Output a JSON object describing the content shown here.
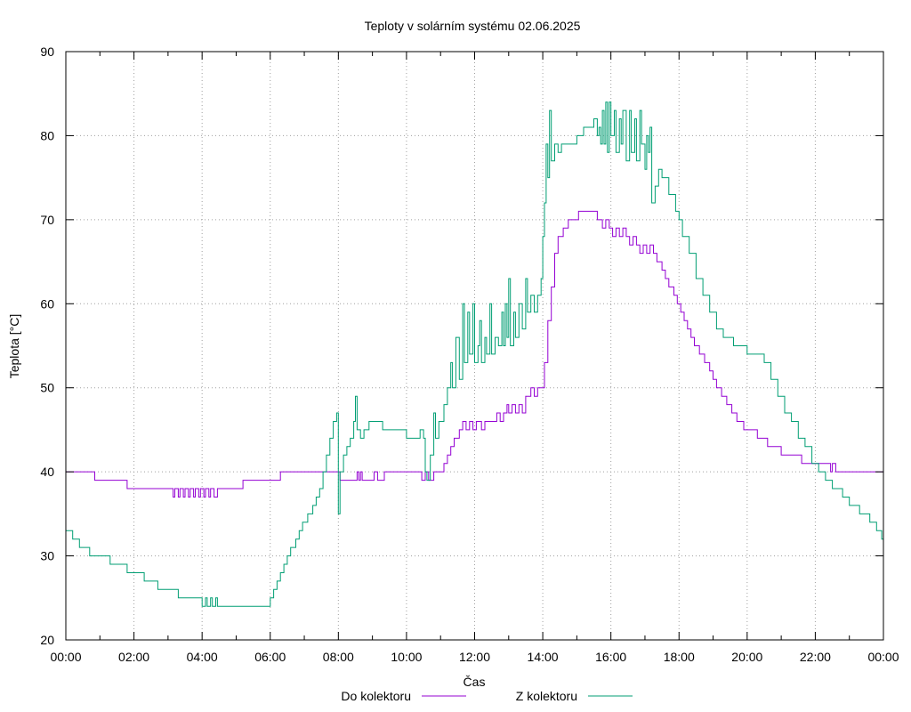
{
  "chart_data": {
    "type": "line",
    "title": "Teploty v solárním systému 02.06.2025",
    "xlabel": "Čas",
    "ylabel": "Teplota [°C]",
    "xlim": [
      0,
      24
    ],
    "ylim": [
      20,
      90
    ],
    "x_ticks": [
      {
        "value": 0,
        "label": "00:00"
      },
      {
        "value": 2,
        "label": "02:00"
      },
      {
        "value": 4,
        "label": "04:00"
      },
      {
        "value": 6,
        "label": "06:00"
      },
      {
        "value": 8,
        "label": "08:00"
      },
      {
        "value": 10,
        "label": "10:00"
      },
      {
        "value": 12,
        "label": "12:00"
      },
      {
        "value": 14,
        "label": "14:00"
      },
      {
        "value": 16,
        "label": "16:00"
      },
      {
        "value": 18,
        "label": "18:00"
      },
      {
        "value": 20,
        "label": "20:00"
      },
      {
        "value": 22,
        "label": "22:00"
      },
      {
        "value": 24,
        "label": "00:00"
      }
    ],
    "y_ticks": [
      {
        "value": 20,
        "label": "20"
      },
      {
        "value": 30,
        "label": "30"
      },
      {
        "value": 40,
        "label": "40"
      },
      {
        "value": 50,
        "label": "50"
      },
      {
        "value": 60,
        "label": "60"
      },
      {
        "value": 70,
        "label": "70"
      },
      {
        "value": 80,
        "label": "80"
      },
      {
        "value": 90,
        "label": "90"
      }
    ],
    "grid": true,
    "legend_position": "bottom-center",
    "series": [
      {
        "name": "Do kolektoru",
        "color": "#9400d3",
        "step": true,
        "points": [
          [
            0,
            40
          ],
          [
            0.85,
            39
          ],
          [
            1.8,
            38
          ],
          [
            3.0,
            38
          ],
          [
            3.15,
            37
          ],
          [
            3.2,
            38
          ],
          [
            3.3,
            37
          ],
          [
            3.35,
            38
          ],
          [
            3.45,
            37
          ],
          [
            3.5,
            38
          ],
          [
            3.6,
            37
          ],
          [
            3.65,
            38
          ],
          [
            3.75,
            37
          ],
          [
            3.8,
            38
          ],
          [
            3.9,
            37
          ],
          [
            3.95,
            38
          ],
          [
            4.05,
            37
          ],
          [
            4.1,
            38
          ],
          [
            4.2,
            37
          ],
          [
            4.25,
            38
          ],
          [
            4.35,
            37
          ],
          [
            4.45,
            38
          ],
          [
            5.2,
            39
          ],
          [
            6.3,
            40
          ],
          [
            8.0,
            40
          ],
          [
            8.05,
            39
          ],
          [
            8.5,
            39
          ],
          [
            8.55,
            40
          ],
          [
            8.6,
            39
          ],
          [
            8.65,
            40
          ],
          [
            8.7,
            39
          ],
          [
            9.0,
            39
          ],
          [
            9.05,
            40
          ],
          [
            9.15,
            39
          ],
          [
            9.3,
            39
          ],
          [
            9.35,
            40
          ],
          [
            10.4,
            40
          ],
          [
            10.45,
            39
          ],
          [
            10.55,
            40
          ],
          [
            10.65,
            39
          ],
          [
            10.8,
            40
          ],
          [
            11.0,
            40
          ],
          [
            11.1,
            41
          ],
          [
            11.2,
            42
          ],
          [
            11.3,
            43
          ],
          [
            11.4,
            44
          ],
          [
            11.55,
            45
          ],
          [
            11.65,
            46
          ],
          [
            11.75,
            45
          ],
          [
            11.85,
            46
          ],
          [
            11.95,
            45
          ],
          [
            12.05,
            46
          ],
          [
            12.2,
            45
          ],
          [
            12.3,
            46
          ],
          [
            12.5,
            46
          ],
          [
            12.65,
            47
          ],
          [
            12.75,
            46
          ],
          [
            12.85,
            47
          ],
          [
            12.95,
            48
          ],
          [
            13.0,
            47
          ],
          [
            13.1,
            48
          ],
          [
            13.2,
            47
          ],
          [
            13.3,
            48
          ],
          [
            13.4,
            47
          ],
          [
            13.5,
            49
          ],
          [
            13.65,
            50
          ],
          [
            13.75,
            49
          ],
          [
            13.85,
            50
          ],
          [
            14.0,
            50
          ],
          [
            14.05,
            53
          ],
          [
            14.15,
            58
          ],
          [
            14.25,
            62
          ],
          [
            14.35,
            66
          ],
          [
            14.45,
            68
          ],
          [
            14.6,
            69
          ],
          [
            14.75,
            70
          ],
          [
            14.95,
            70
          ],
          [
            15.05,
            71
          ],
          [
            15.6,
            70
          ],
          [
            15.75,
            69
          ],
          [
            15.85,
            70
          ],
          [
            15.95,
            69
          ],
          [
            16.05,
            68
          ],
          [
            16.15,
            69
          ],
          [
            16.25,
            68
          ],
          [
            16.35,
            69
          ],
          [
            16.45,
            68
          ],
          [
            16.55,
            67
          ],
          [
            16.65,
            68
          ],
          [
            16.75,
            67
          ],
          [
            16.85,
            66
          ],
          [
            16.95,
            67
          ],
          [
            17.05,
            66
          ],
          [
            17.15,
            67
          ],
          [
            17.25,
            66
          ],
          [
            17.35,
            65
          ],
          [
            17.5,
            64
          ],
          [
            17.6,
            63
          ],
          [
            17.7,
            62
          ],
          [
            17.85,
            61
          ],
          [
            17.95,
            60
          ],
          [
            18.05,
            59
          ],
          [
            18.15,
            58
          ],
          [
            18.25,
            57
          ],
          [
            18.35,
            56
          ],
          [
            18.45,
            55
          ],
          [
            18.6,
            54
          ],
          [
            18.75,
            53
          ],
          [
            18.9,
            52
          ],
          [
            19.0,
            51
          ],
          [
            19.1,
            50
          ],
          [
            19.25,
            49
          ],
          [
            19.4,
            48
          ],
          [
            19.55,
            47
          ],
          [
            19.7,
            46
          ],
          [
            19.9,
            45
          ],
          [
            20.3,
            44
          ],
          [
            20.6,
            43
          ],
          [
            21.0,
            42
          ],
          [
            21.6,
            41
          ],
          [
            22.4,
            41
          ],
          [
            22.45,
            40
          ],
          [
            22.5,
            41
          ],
          [
            22.6,
            40
          ],
          [
            24,
            40
          ]
        ]
      },
      {
        "name": "Z kolektoru",
        "color": "#009e73",
        "step": true,
        "points": [
          [
            0,
            33
          ],
          [
            0.2,
            32
          ],
          [
            0.4,
            31
          ],
          [
            0.7,
            30
          ],
          [
            1.3,
            29
          ],
          [
            1.8,
            28
          ],
          [
            2.3,
            27
          ],
          [
            2.7,
            26
          ],
          [
            3.3,
            25
          ],
          [
            3.9,
            25
          ],
          [
            4.0,
            24
          ],
          [
            4.1,
            25
          ],
          [
            4.15,
            24
          ],
          [
            4.25,
            25
          ],
          [
            4.3,
            24
          ],
          [
            4.4,
            25
          ],
          [
            4.45,
            24
          ],
          [
            5.9,
            24
          ],
          [
            6.0,
            25
          ],
          [
            6.1,
            26
          ],
          [
            6.2,
            27
          ],
          [
            6.3,
            28
          ],
          [
            6.4,
            29
          ],
          [
            6.5,
            30
          ],
          [
            6.6,
            31
          ],
          [
            6.75,
            32
          ],
          [
            6.85,
            33
          ],
          [
            6.95,
            34
          ],
          [
            7.1,
            35
          ],
          [
            7.25,
            36
          ],
          [
            7.35,
            37
          ],
          [
            7.45,
            38
          ],
          [
            7.55,
            40
          ],
          [
            7.65,
            42
          ],
          [
            7.75,
            44
          ],
          [
            7.85,
            46
          ],
          [
            7.95,
            47
          ],
          [
            8.0,
            35
          ],
          [
            8.05,
            40
          ],
          [
            8.15,
            42
          ],
          [
            8.25,
            43
          ],
          [
            8.35,
            44
          ],
          [
            8.45,
            46
          ],
          [
            8.5,
            49
          ],
          [
            8.55,
            45
          ],
          [
            8.65,
            44
          ],
          [
            8.75,
            45
          ],
          [
            8.9,
            46
          ],
          [
            9.3,
            45
          ],
          [
            10.0,
            44
          ],
          [
            10.4,
            45
          ],
          [
            10.5,
            44
          ],
          [
            10.55,
            40
          ],
          [
            10.6,
            39
          ],
          [
            10.7,
            42
          ],
          [
            10.8,
            47
          ],
          [
            10.85,
            44
          ],
          [
            10.95,
            46
          ],
          [
            11.1,
            48
          ],
          [
            11.2,
            50
          ],
          [
            11.3,
            53
          ],
          [
            11.35,
            50
          ],
          [
            11.45,
            56
          ],
          [
            11.55,
            51
          ],
          [
            11.65,
            60
          ],
          [
            11.7,
            53
          ],
          [
            11.8,
            59
          ],
          [
            11.85,
            54
          ],
          [
            11.95,
            60
          ],
          [
            12.0,
            53
          ],
          [
            12.1,
            55
          ],
          [
            12.15,
            58
          ],
          [
            12.2,
            53
          ],
          [
            12.3,
            56
          ],
          [
            12.35,
            54
          ],
          [
            12.45,
            60
          ],
          [
            12.5,
            54
          ],
          [
            12.6,
            56
          ],
          [
            12.7,
            55
          ],
          [
            12.8,
            59
          ],
          [
            12.85,
            55
          ],
          [
            12.9,
            60
          ],
          [
            12.95,
            56
          ],
          [
            13.0,
            63
          ],
          [
            13.05,
            55
          ],
          [
            13.15,
            59
          ],
          [
            13.2,
            56
          ],
          [
            13.3,
            60
          ],
          [
            13.4,
            57
          ],
          [
            13.5,
            63
          ],
          [
            13.55,
            59
          ],
          [
            13.65,
            61
          ],
          [
            13.75,
            59
          ],
          [
            13.85,
            61
          ],
          [
            13.95,
            63
          ],
          [
            14.0,
            68
          ],
          [
            14.05,
            72
          ],
          [
            14.1,
            79
          ],
          [
            14.15,
            75
          ],
          [
            14.2,
            83
          ],
          [
            14.25,
            77
          ],
          [
            14.35,
            79
          ],
          [
            14.45,
            78
          ],
          [
            14.55,
            79
          ],
          [
            14.65,
            79
          ],
          [
            14.75,
            79
          ],
          [
            15.0,
            80
          ],
          [
            15.2,
            81
          ],
          [
            15.5,
            82
          ],
          [
            15.6,
            80
          ],
          [
            15.65,
            81
          ],
          [
            15.7,
            79
          ],
          [
            15.75,
            83
          ],
          [
            15.8,
            79
          ],
          [
            15.85,
            84
          ],
          [
            15.9,
            78
          ],
          [
            15.95,
            84
          ],
          [
            16.0,
            80
          ],
          [
            16.1,
            83
          ],
          [
            16.15,
            78
          ],
          [
            16.25,
            82
          ],
          [
            16.3,
            79
          ],
          [
            16.35,
            83
          ],
          [
            16.45,
            77
          ],
          [
            16.55,
            83
          ],
          [
            16.6,
            78
          ],
          [
            16.7,
            82
          ],
          [
            16.75,
            77
          ],
          [
            16.85,
            83
          ],
          [
            16.9,
            79
          ],
          [
            17.0,
            76
          ],
          [
            17.05,
            80
          ],
          [
            17.1,
            78
          ],
          [
            17.15,
            81
          ],
          [
            17.2,
            72
          ],
          [
            17.3,
            74
          ],
          [
            17.4,
            76
          ],
          [
            17.5,
            75
          ],
          [
            17.7,
            73
          ],
          [
            17.9,
            71
          ],
          [
            18.0,
            70
          ],
          [
            18.1,
            68
          ],
          [
            18.3,
            66
          ],
          [
            18.5,
            63
          ],
          [
            18.7,
            61
          ],
          [
            18.9,
            59
          ],
          [
            19.1,
            57
          ],
          [
            19.3,
            56
          ],
          [
            19.6,
            55
          ],
          [
            20.0,
            54
          ],
          [
            20.5,
            53
          ],
          [
            20.7,
            51
          ],
          [
            20.9,
            49
          ],
          [
            21.1,
            47
          ],
          [
            21.3,
            46
          ],
          [
            21.5,
            44
          ],
          [
            21.7,
            43
          ],
          [
            21.9,
            41
          ],
          [
            22.1,
            40
          ],
          [
            22.3,
            39
          ],
          [
            22.5,
            38
          ],
          [
            22.8,
            37
          ],
          [
            23.0,
            36
          ],
          [
            23.3,
            35
          ],
          [
            23.6,
            34
          ],
          [
            23.8,
            33
          ],
          [
            23.95,
            32
          ],
          [
            24,
            32
          ]
        ]
      }
    ]
  }
}
